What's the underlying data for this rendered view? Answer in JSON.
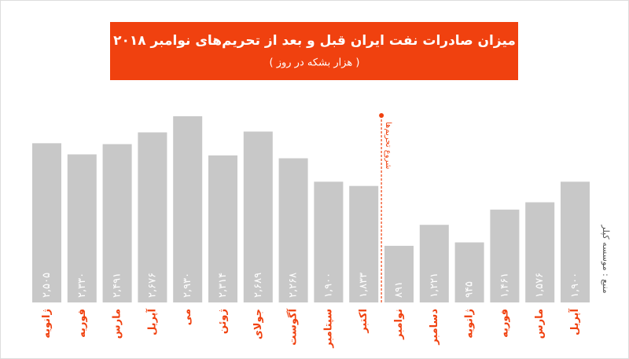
{
  "chart_data": {
    "type": "bar",
    "title": "میزان صادرات نفت ایران قبل و بعد از تحریم‌های نوامبر ۲۰۱۸",
    "subtitle": "( هزار بشکه در روز )",
    "annotation": "شروع تحریم‌ها",
    "source": "منبع : موسسه کپلر",
    "categories": [
      "ژانویه",
      "فوریه",
      "مارس",
      "آپریل",
      "می",
      "ژوئن",
      "جولای",
      "آگوست",
      "سپتامبر",
      "اکتبر",
      "نوامبر",
      "دسامبر",
      "ژانویه",
      "فوریه",
      "مارس",
      "آپریل"
    ],
    "values": [
      2505,
      2330,
      2491,
      2676,
      2930,
      2314,
      2689,
      2268,
      1900,
      1833,
      891,
      1221,
      945,
      1461,
      1576,
      1900
    ],
    "value_labels": [
      "۲,۵۰۵",
      "۲,۳۳۰",
      "۲,۴۹۱",
      "۲,۶۷۶",
      "۲,۹۳۰",
      "۲,۳۱۴",
      "۲,۶۸۹",
      "۲,۲۶۸",
      "۱,۹۰۰",
      "۱,۸۳۳",
      "۸۹۱",
      "۱,۲۲۱",
      "۹۴۵",
      "۱,۴۶۱",
      "۱,۵۷۶",
      "۱,۹۰۰"
    ],
    "color": "#c8c8c8",
    "accent_color": "#f0410f"
  }
}
